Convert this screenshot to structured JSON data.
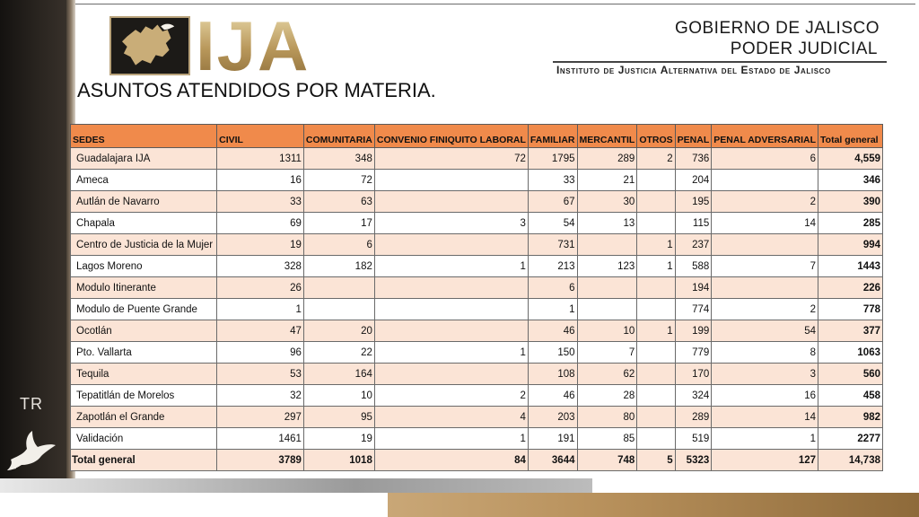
{
  "header": {
    "logo_text": "IJA",
    "gov_line1": "GOBIERNO DE JALISCO",
    "gov_line2": "PODER JUDICIAL",
    "institute": "Instituto de Justicia Alternativa del Estado de Jalisco"
  },
  "sidebar": {
    "tag": "TR"
  },
  "page_title": "ASUNTOS ATENDIDOS POR MATERIA.",
  "table": {
    "headers": [
      "SEDES",
      "CIVIL",
      "COMUNITARIA",
      "CONVENIO FINIQUITO LABORAL",
      "FAMILIAR",
      "MERCANTIL",
      "OTROS",
      "PENAL",
      "PENAL ADVERSARIAL",
      "Total general"
    ],
    "rows": [
      [
        "Guadalajara IJA",
        "1311",
        "348",
        "72",
        "1795",
        "289",
        "2",
        "736",
        "6",
        "4,559"
      ],
      [
        " Ameca",
        "16",
        "72",
        "",
        "33",
        "21",
        "",
        "204",
        "",
        "346"
      ],
      [
        "Autlán de Navarro",
        "33",
        "63",
        "",
        "67",
        "30",
        "",
        "195",
        "2",
        "390"
      ],
      [
        "Chapala",
        "69",
        "17",
        "3",
        "54",
        "13",
        "",
        "115",
        "14",
        "285"
      ],
      [
        "Centro de Justicia de la Mujer",
        "19",
        "6",
        "",
        "731",
        "",
        "1",
        "237",
        "",
        "994"
      ],
      [
        "Lagos Moreno",
        "328",
        "182",
        "1",
        "213",
        "123",
        "1",
        "588",
        "7",
        "1443"
      ],
      [
        "Modulo Itinerante",
        "26",
        "",
        "",
        "6",
        "",
        "",
        "194",
        "",
        "226"
      ],
      [
        "Modulo de Puente Grande",
        "1",
        "",
        "",
        "1",
        "",
        "",
        "774",
        "2",
        "778"
      ],
      [
        "Ocotlán",
        "47",
        "20",
        "",
        "46",
        "10",
        "1",
        "199",
        "54",
        "377"
      ],
      [
        "Pto. Vallarta",
        "96",
        "22",
        "1",
        "150",
        "7",
        "",
        "779",
        "8",
        "1063"
      ],
      [
        "Tequila",
        "53",
        "164",
        "",
        "108",
        "62",
        "",
        "170",
        "3",
        "560"
      ],
      [
        "Tepatitlán de Morelos",
        "32",
        "10",
        "2",
        "46",
        "28",
        "",
        "324",
        "16",
        "458"
      ],
      [
        "Zapotlán el Grande",
        "297",
        "95",
        "4",
        "203",
        "80",
        "",
        "289",
        "14",
        "982"
      ],
      [
        " Validación",
        "1461",
        "19",
        "1",
        "191",
        "85",
        "",
        "519",
        "1",
        "2277"
      ]
    ],
    "footer": [
      "Total general",
      "3789",
      "1018",
      "84",
      "3644",
      "748",
      "5",
      "5323",
      "127",
      "14,738"
    ]
  },
  "colors": {
    "header_fill": "#f08a4b",
    "band_fill": "#fbe4d6",
    "gold": "#b8975a",
    "sidebar": "#2a2520"
  },
  "icons": [
    "jalisco-map-logo-icon",
    "dove-icon"
  ]
}
